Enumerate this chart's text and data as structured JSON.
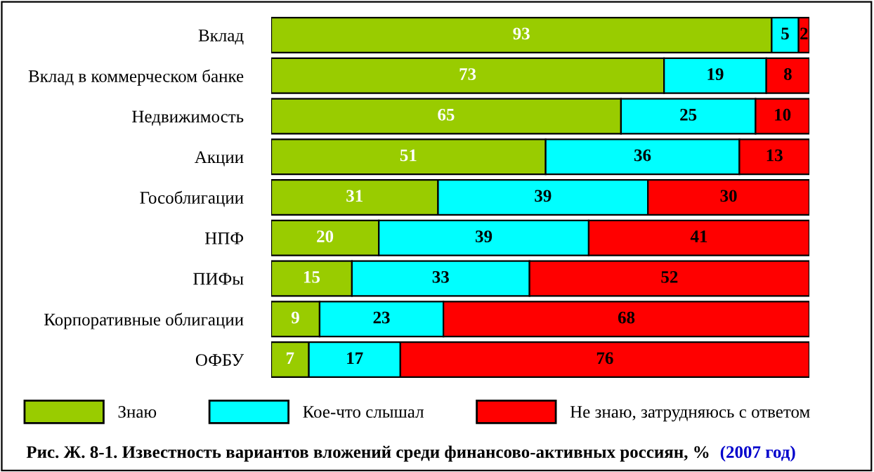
{
  "chart_data": {
    "type": "bar",
    "orientation": "horizontal",
    "stacked": true,
    "data_labels": true,
    "legend": "bottom",
    "grid": false,
    "title": "Рис. Ж. 8-1. Известность вариантов вложений среди финансово-активных россиян, %",
    "subtitle": "(2007 год)",
    "categories": [
      "Вклад",
      "Вклад в коммерческом банке",
      "Недвижимость",
      "Акции",
      "Гособлигации",
      "НПФ",
      "ПИФы",
      "Корпоративные облигации",
      "ОФБУ"
    ],
    "series": [
      {
        "name": "Знаю",
        "color": "#99cc00",
        "values": [
          93,
          73,
          65,
          51,
          31,
          20,
          15,
          9,
          7
        ]
      },
      {
        "name": "Кое-что слышал",
        "color": "#00ffff",
        "values": [
          5,
          19,
          25,
          36,
          39,
          39,
          33,
          23,
          17
        ]
      },
      {
        "name": "Не знаю, затрудняюсь с ответом",
        "color": "#ff0000",
        "values": [
          2,
          8,
          10,
          13,
          30,
          41,
          52,
          68,
          76
        ]
      }
    ]
  }
}
